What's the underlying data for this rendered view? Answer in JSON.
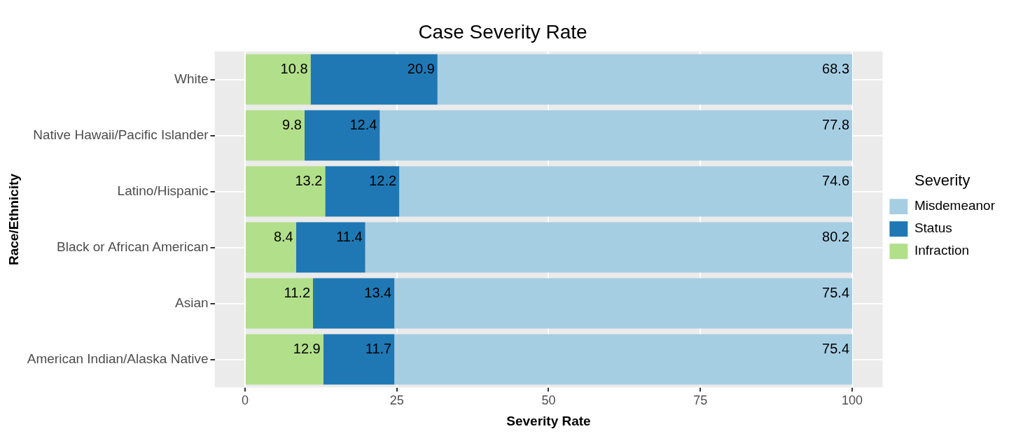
{
  "chart_data": {
    "type": "bar",
    "orientation": "horizontal",
    "stacked": true,
    "title": "Case Severity Rate",
    "xlabel": "Severity Rate",
    "ylabel": "Race/Ethnicity",
    "legend_title": "Severity",
    "legend": "right",
    "grid": true,
    "data_labels": true,
    "categories": [
      "White",
      "Native Hawaii/Pacific Islander",
      "Latino/Hispanic",
      "Black or African American",
      "Asian",
      "American Indian/Alaska Native"
    ],
    "xlim": [
      -5,
      105
    ],
    "xticks": [
      0,
      25,
      50,
      75,
      100
    ],
    "series": [
      {
        "name": "Infraction",
        "color": "#b2df8a",
        "values": [
          10.8,
          9.8,
          13.2,
          8.4,
          11.2,
          12.9
        ]
      },
      {
        "name": "Status",
        "color": "#1f78b4",
        "values": [
          20.9,
          12.4,
          12.2,
          11.4,
          13.4,
          11.7
        ]
      },
      {
        "name": "Misdemeanor",
        "color": "#a6cee3",
        "values": [
          68.3,
          77.8,
          74.6,
          80.2,
          75.4,
          75.4
        ]
      }
    ]
  }
}
